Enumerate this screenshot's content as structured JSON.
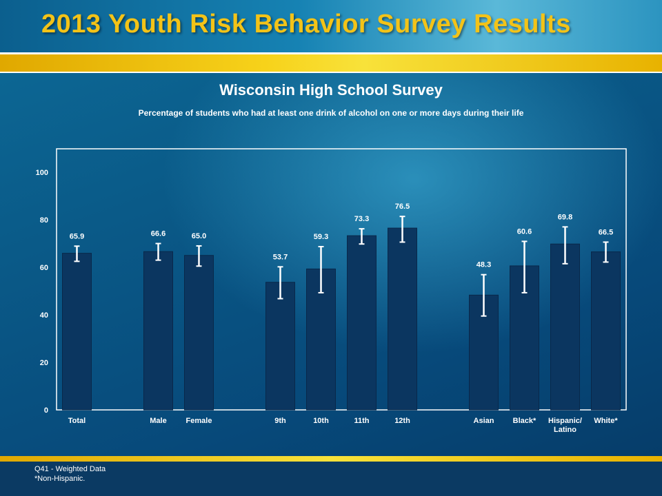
{
  "header": {
    "title": "2013 Youth Risk Behavior Survey Results"
  },
  "chart_data": {
    "type": "bar",
    "title": "Wisconsin High School Survey",
    "subtitle": "Percentage of students who had at least one drink of alcohol on one or more days during their life",
    "categories": [
      "Total",
      "Male",
      "Female",
      "9th",
      "10th",
      "11th",
      "12th",
      "Asian",
      "Black*",
      "Hispanic/ Latino",
      "White*"
    ],
    "groups": [
      [
        0
      ],
      [
        1,
        2
      ],
      [
        3,
        4,
        5,
        6
      ],
      [
        7,
        8,
        9,
        10
      ]
    ],
    "values": [
      65.9,
      66.6,
      65.0,
      53.7,
      59.3,
      73.3,
      76.5,
      48.3,
      60.6,
      69.8,
      66.5
    ],
    "value_labels": [
      "65.9",
      "66.6",
      "65.0",
      "53.7",
      "59.3",
      "73.3",
      "76.5",
      "48.3",
      "60.6",
      "69.8",
      "66.5"
    ],
    "ci_low": [
      62.5,
      63.0,
      60.5,
      46.8,
      49.3,
      69.8,
      70.6,
      39.5,
      49.3,
      61.5,
      62.2
    ],
    "ci_high": [
      68.9,
      70.0,
      69.0,
      60.2,
      68.7,
      76.2,
      81.4,
      56.9,
      70.9,
      77.0,
      70.6
    ],
    "yticks": [
      0,
      20,
      40,
      60,
      80,
      100
    ],
    "ylim": [
      0,
      110
    ],
    "grid": false,
    "colors": {
      "bar": "#0b3660",
      "bar_edge": "#09284a",
      "error_bar": "#ffffff",
      "frame": "#ffffff"
    }
  },
  "footer": {
    "note1": "Q41 - Weighted Data",
    "note2": "*Non-Hispanic."
  }
}
